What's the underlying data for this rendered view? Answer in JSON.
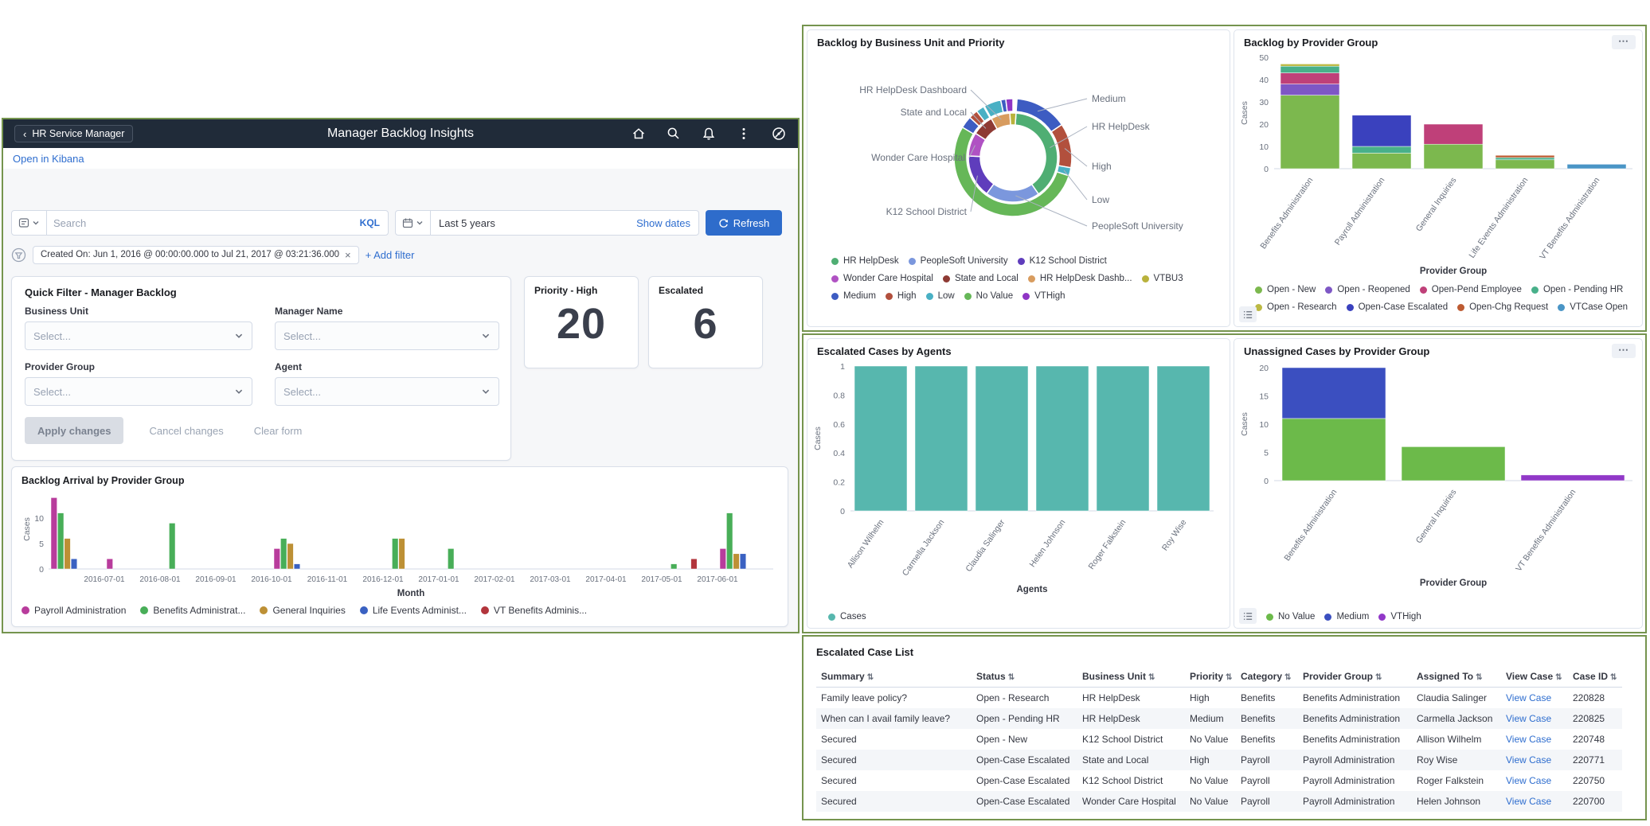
{
  "app": {
    "back_label": "HR Service Manager",
    "title": "Manager Backlog Insights",
    "open_link": "Open in Kibana"
  },
  "query_bar": {
    "search_placeholder": "Search",
    "kql_label": "KQL",
    "time_range": "Last 5 years",
    "show_dates_label": "Show dates",
    "refresh_label": "Refresh"
  },
  "filter_bar": {
    "pill": "Created On: Jun 1, 2016 @ 00:00:00.000 to Jul 21, 2017 @ 03:21:36.000",
    "pill_close": "×",
    "add_filter_label": "+ Add filter"
  },
  "quick_filter": {
    "title": "Quick Filter - Manager Backlog",
    "fields": [
      {
        "label": "Business Unit",
        "placeholder": "Select..."
      },
      {
        "label": "Manager Name",
        "placeholder": "Select..."
      },
      {
        "label": "Provider Group",
        "placeholder": "Select..."
      },
      {
        "label": "Agent",
        "placeholder": "Select..."
      }
    ],
    "apply_label": "Apply changes",
    "cancel_label": "Cancel changes",
    "clear_label": "Clear form"
  },
  "kpis": [
    {
      "label": "Priority - High",
      "value": "20"
    },
    {
      "label": "Escalated",
      "value": "6"
    }
  ],
  "chart_data": [
    {
      "id": "backlog_arrival",
      "type": "bar",
      "title": "Backlog Arrival by Provider Group",
      "xlabel": "Month",
      "ylabel": "Cases",
      "ymax": 15,
      "yticks": [
        0,
        5,
        10
      ],
      "months": [
        "2016-06",
        "2016-07",
        "2016-08",
        "2016-09",
        "2016-10",
        "2016-11",
        "2016-12",
        "2017-01",
        "2017-02",
        "2017-03",
        "2017-04",
        "2017-05",
        "2017-06"
      ],
      "xticks": [
        "2016-07-01",
        "2016-08-01",
        "2016-09-01",
        "2016-10-01",
        "2016-11-01",
        "2016-12-01",
        "2017-01-01",
        "2017-02-01",
        "2017-03-01",
        "2017-04-01",
        "2017-05-01",
        "2017-06-01"
      ],
      "series": [
        {
          "name": "Payroll Administration",
          "color": "#b83c9c"
        },
        {
          "name": "Benefits Administrat...",
          "color": "#48ae58"
        },
        {
          "name": "General Inquiries",
          "color": "#bd9035"
        },
        {
          "name": "Life Events Administ...",
          "color": "#3a61c2"
        },
        {
          "name": "VT Benefits Adminis...",
          "color": "#b2353c"
        }
      ],
      "groups": [
        {
          "month": "2016-06",
          "values": [
            14,
            11,
            6,
            2,
            0
          ]
        },
        {
          "month": "2016-07",
          "values": [
            2,
            0,
            0,
            0,
            0
          ]
        },
        {
          "month": "2016-08",
          "values": [
            0,
            9,
            0,
            0,
            0
          ]
        },
        {
          "month": "2016-10",
          "values": [
            4,
            6,
            5,
            1,
            0
          ]
        },
        {
          "month": "2016-12",
          "values": [
            0,
            6,
            6,
            0,
            0
          ]
        },
        {
          "month": "2017-01",
          "values": [
            0,
            4,
            0,
            0,
            0
          ]
        },
        {
          "month": "2017-05",
          "values": [
            0,
            1,
            0,
            0,
            2
          ]
        },
        {
          "month": "2017-06",
          "values": [
            4,
            11,
            3,
            3,
            0
          ]
        }
      ]
    },
    {
      "id": "backlog_by_bu_priority",
      "type": "pie",
      "title": "Backlog by Business Unit and Priority",
      "rings": {
        "inner": [
          {
            "label": "HR HelpDesk",
            "color": "#4fae73",
            "from": 4,
            "to": 145
          },
          {
            "label": "PeopleSoft University",
            "color": "#7b97dd",
            "from": 145,
            "to": 216
          },
          {
            "label": "K12 School District",
            "color": "#5f3dbc",
            "from": 216,
            "to": 272
          },
          {
            "label": "Wonder Care Hospital",
            "color": "#b052c3",
            "from": 272,
            "to": 303
          },
          {
            "label": "State and Local",
            "color": "#8e3a34",
            "from": 303,
            "to": 331
          },
          {
            "label": "HR HelpDesk Dashboard",
            "color": "#d89c5f",
            "from": 331,
            "to": 356
          },
          {
            "label": "VTBU3",
            "color": "#b9b23c",
            "from": 356,
            "to": 364
          }
        ],
        "outer": [
          {
            "label": "Medium",
            "color": "#3d5cc2",
            "from": 4,
            "to": 56
          },
          {
            "label": "High",
            "color": "#b2503d",
            "from": 56,
            "to": 100
          },
          {
            "label": "Low",
            "color": "#49b0c4",
            "from": 100,
            "to": 108
          },
          {
            "label": "No Value",
            "color": "#66b758",
            "from": 108,
            "to": 301
          },
          {
            "label": "Medium",
            "color": "#3d5cc2",
            "from": 301,
            "to": 313
          },
          {
            "label": "High",
            "color": "#b2503d",
            "from": 313,
            "to": 322
          },
          {
            "label": "Low",
            "color": "#49b0c4",
            "from": 322,
            "to": 330
          },
          {
            "label": "Low",
            "color": "#49b0c4",
            "from": 331,
            "to": 348
          },
          {
            "label": "Medium",
            "color": "#3d5cc2",
            "from": 348,
            "to": 353
          },
          {
            "label": "VTHigh",
            "color": "#8f35c5",
            "from": 353,
            "to": 360
          }
        ]
      },
      "callouts": [
        {
          "text": "HR HelpDesk Dashboard",
          "side": "left"
        },
        {
          "text": "State and Local",
          "side": "left"
        },
        {
          "text": "Wonder Care Hospital",
          "side": "left"
        },
        {
          "text": "K12 School District",
          "side": "left"
        },
        {
          "text": "Medium",
          "side": "right"
        },
        {
          "text": "HR HelpDesk",
          "side": "right"
        },
        {
          "text": "High",
          "side": "right"
        },
        {
          "text": "Low",
          "side": "right"
        },
        {
          "text": "PeopleSoft University",
          "side": "right"
        }
      ],
      "legend_rows": [
        [
          {
            "label": "HR HelpDesk",
            "color": "#4fae73"
          },
          {
            "label": "PeopleSoft University",
            "color": "#7b97dd"
          },
          {
            "label": "K12 School District",
            "color": "#5f3dbc"
          }
        ],
        [
          {
            "label": "Wonder Care Hospital",
            "color": "#b052c3"
          },
          {
            "label": "State and Local",
            "color": "#8e3a34"
          },
          {
            "label": "HR HelpDesk Dashb...",
            "color": "#d89c5f"
          },
          {
            "label": "VTBU3",
            "color": "#b9b23c"
          }
        ],
        [
          {
            "label": "Medium",
            "color": "#3d5cc2"
          },
          {
            "label": "High",
            "color": "#b2503d"
          },
          {
            "label": "Low",
            "color": "#49b0c4"
          },
          {
            "label": "No Value",
            "color": "#66b758"
          },
          {
            "label": "VTHigh",
            "color": "#8f35c5"
          }
        ]
      ]
    },
    {
      "id": "backlog_by_provider_group",
      "type": "bar",
      "title": "Backlog by Provider Group",
      "xlabel": "Provider Group",
      "ylabel": "Cases",
      "ymax": 50,
      "yticks": [
        0,
        10,
        20,
        30,
        40,
        50
      ],
      "categories": [
        "Benefits Administration",
        "Payroll Administration",
        "General Inquiries",
        "Life Events Administration",
        "VT Benefits Administration"
      ],
      "palette": {
        "Open - New": "#7cb84e",
        "Open - Reopened": "#7e57c5",
        "Open-Pend Employee": "#bf4079",
        "Open - Pending HR": "#48b08a",
        "Open - Research": "#bcb943",
        "Open-Case Escalated": "#3a41be",
        "Open-Chg Request": "#bd5b32",
        "VTCase Open": "#4a95c6"
      },
      "values": [
        [
          [
            "Open - New",
            33
          ],
          [
            "Open - Reopened",
            5
          ],
          [
            "Open-Pend Employee",
            5
          ],
          [
            "Open - Pending HR",
            3
          ],
          [
            "Open - Research",
            1
          ]
        ],
        [
          [
            "Open - New",
            7
          ],
          [
            "Open - Pending HR",
            3
          ],
          [
            "Open-Case Escalated",
            14
          ]
        ],
        [
          [
            "Open - New",
            11
          ],
          [
            "Open-Pend Employee",
            9
          ]
        ],
        [
          [
            "Open - New",
            4
          ],
          [
            "Open - Pending HR",
            1
          ],
          [
            "Open-Chg Request",
            1
          ]
        ],
        [
          [
            "VTCase Open",
            2
          ]
        ]
      ],
      "legend_rows": [
        [
          {
            "label": "Open - New",
            "color": "#7cb84e"
          },
          {
            "label": "Open - Reopened",
            "color": "#7e57c5"
          },
          {
            "label": "Open-Pend Employee",
            "color": "#bf4079"
          },
          {
            "label": "Open - Pending HR",
            "color": "#48b08a"
          }
        ],
        [
          {
            "label": "Open - Research",
            "color": "#bcb943"
          },
          {
            "label": "Open-Case Escalated",
            "color": "#3a41be"
          },
          {
            "label": "Open-Chg Request",
            "color": "#bd5b32"
          },
          {
            "label": "VTCase Open",
            "color": "#4a95c6"
          }
        ]
      ]
    },
    {
      "id": "escalated_by_agents",
      "type": "bar",
      "title": "Escalated Cases by Agents",
      "xlabel": "Agents",
      "ylabel": "Cases",
      "ymax": 1,
      "yticks": [
        0,
        0.2,
        0.4,
        0.6,
        0.8,
        1
      ],
      "categories": [
        "Allison Wilhelm",
        "Carmella Jackson",
        "Claudia Salinger",
        "Helen Johnson",
        "Roger Falkstein",
        "Roy Wise"
      ],
      "palette": {
        "Cases": "#57b7ae"
      },
      "values": [
        [
          [
            "Cases",
            1
          ]
        ],
        [
          [
            "Cases",
            1
          ]
        ],
        [
          [
            "Cases",
            1
          ]
        ],
        [
          [
            "Cases",
            1
          ]
        ],
        [
          [
            "Cases",
            1
          ]
        ],
        [
          [
            "Cases",
            1
          ]
        ]
      ],
      "legend_rows": [
        [
          {
            "label": "Cases",
            "color": "#57b7ae"
          }
        ]
      ]
    },
    {
      "id": "unassigned_by_provider_group",
      "type": "bar",
      "title": "Unassigned Cases by Provider Group",
      "xlabel": "Provider Group",
      "ylabel": "Cases",
      "ymax": 20,
      "yticks": [
        0,
        5,
        10,
        15,
        20
      ],
      "categories": [
        "Benefits Administration",
        "General Inquiries",
        "VT Benefits Administration"
      ],
      "palette": {
        "No Value": "#6cba4a",
        "Medium": "#3b4fc0",
        "VTHigh": "#9138c8"
      },
      "values": [
        [
          [
            "No Value",
            11
          ],
          [
            "Medium",
            9
          ]
        ],
        [
          [
            "No Value",
            6
          ]
        ],
        [
          [
            "VTHigh",
            1
          ]
        ]
      ],
      "legend_rows": [
        [
          {
            "label": "No Value",
            "color": "#6cba4a"
          },
          {
            "label": "Medium",
            "color": "#3b4fc0"
          },
          {
            "label": "VTHigh",
            "color": "#9138c8"
          }
        ]
      ]
    }
  ],
  "case_list": {
    "title": "Escalated Case List",
    "columns": [
      "Summary",
      "Status",
      "Business Unit",
      "Priority",
      "Category",
      "Provider Group",
      "Assigned To",
      "View Case",
      "Case ID"
    ],
    "rows": [
      [
        "Family leave policy?",
        "Open - Research",
        "HR HelpDesk",
        "High",
        "Benefits",
        "Benefits Administration",
        "Claudia Salinger",
        "View Case",
        "220828"
      ],
      [
        "When can I avail family leave?",
        "Open - Pending HR",
        "HR HelpDesk",
        "Medium",
        "Benefits",
        "Benefits Administration",
        "Carmella Jackson",
        "View Case",
        "220825"
      ],
      [
        "Secured",
        "Open - New",
        "K12 School District",
        "No Value",
        "Benefits",
        "Benefits Administration",
        "Allison Wilhelm",
        "View Case",
        "220748"
      ],
      [
        "Secured",
        "Open-Case Escalated",
        "State and Local",
        "High",
        "Payroll",
        "Payroll Administration",
        "Roy Wise",
        "View Case",
        "220771"
      ],
      [
        "Secured",
        "Open-Case Escalated",
        "K12 School District",
        "No Value",
        "Payroll",
        "Payroll Administration",
        "Roger Falkstein",
        "View Case",
        "220750"
      ],
      [
        "Secured",
        "Open-Case Escalated",
        "Wonder Care Hospital",
        "No Value",
        "Payroll",
        "Payroll Administration",
        "Helen Johnson",
        "View Case",
        "220700"
      ]
    ]
  }
}
